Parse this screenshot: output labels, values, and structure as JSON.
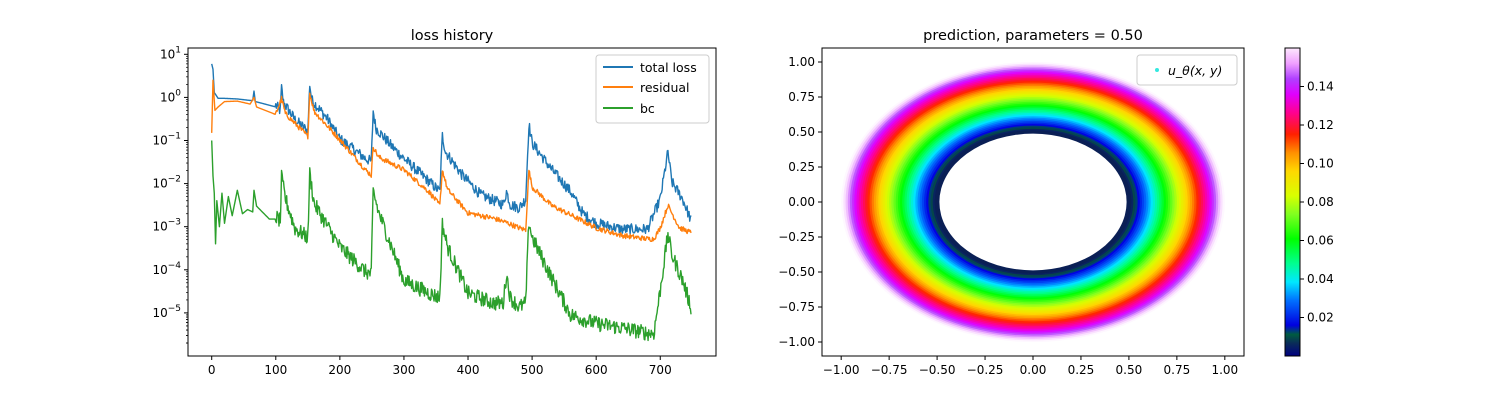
{
  "chart_data": [
    {
      "type": "line",
      "title": "loss history",
      "xlabel": "",
      "ylabel": "",
      "yscale": "log",
      "xlim": [
        -37,
        787
      ],
      "ylim": [
        1e-06,
        14
      ],
      "xticks": [
        0,
        100,
        200,
        300,
        400,
        500,
        600,
        700
      ],
      "ytick_labels": [
        "10^1",
        "10^0",
        "10^-1",
        "10^-2",
        "10^-3",
        "10^-4",
        "10^-5"
      ],
      "legend": "top-right",
      "series": [
        {
          "name": "total loss",
          "color": "#1f77b4",
          "points": [
            [
              0,
              6.0
            ],
            [
              2,
              4.5
            ],
            [
              4,
              1.3
            ],
            [
              10,
              0.95
            ],
            [
              20,
              0.95
            ],
            [
              40,
              0.92
            ],
            [
              60,
              0.85
            ],
            [
              64,
              0.85
            ],
            [
              66,
              1.4
            ],
            [
              68,
              0.8
            ],
            [
              80,
              0.72
            ],
            [
              100,
              0.6
            ],
            [
              107,
              0.45
            ],
            [
              109,
              1.5
            ],
            [
              112,
              0.7
            ],
            [
              130,
              0.28
            ],
            [
              150,
              0.15
            ],
            [
              153,
              1.9
            ],
            [
              156,
              0.8
            ],
            [
              180,
              0.3
            ],
            [
              200,
              0.1
            ],
            [
              240,
              0.035
            ],
            [
              249,
              0.03
            ],
            [
              252,
              0.45
            ],
            [
              256,
              0.18
            ],
            [
              280,
              0.07
            ],
            [
              300,
              0.035
            ],
            [
              340,
              0.01
            ],
            [
              356,
              0.006
            ],
            [
              360,
              0.12
            ],
            [
              365,
              0.05
            ],
            [
              390,
              0.015
            ],
            [
              420,
              0.005
            ],
            [
              455,
              0.003
            ],
            [
              460,
              0.006
            ],
            [
              466,
              0.003
            ],
            [
              480,
              0.0025
            ],
            [
              490,
              0.004
            ],
            [
              495,
              0.22
            ],
            [
              500,
              0.08
            ],
            [
              530,
              0.02
            ],
            [
              560,
              0.006
            ],
            [
              580,
              0.0018
            ],
            [
              600,
              0.0011
            ],
            [
              640,
              0.0008
            ],
            [
              680,
              0.0008
            ],
            [
              700,
              0.004
            ],
            [
              712,
              0.05
            ],
            [
              718,
              0.01
            ],
            [
              735,
              0.004
            ],
            [
              748,
              0.0013
            ]
          ],
          "noise": {
            "from": 100,
            "to": 748,
            "amplitude_decades": 0.25
          }
        },
        {
          "name": "residual",
          "color": "#ff7f0e",
          "points": [
            [
              0,
              0.15
            ],
            [
              2,
              2.5
            ],
            [
              5,
              0.5
            ],
            [
              10,
              0.6
            ],
            [
              20,
              0.8
            ],
            [
              40,
              0.82
            ],
            [
              60,
              0.7
            ],
            [
              66,
              1.0
            ],
            [
              70,
              0.6
            ],
            [
              100,
              0.4
            ],
            [
              109,
              0.9
            ],
            [
              115,
              0.4
            ],
            [
              150,
              0.12
            ],
            [
              153,
              1.2
            ],
            [
              160,
              0.45
            ],
            [
              200,
              0.1
            ],
            [
              240,
              0.02
            ],
            [
              249,
              0.015
            ],
            [
              252,
              0.07
            ],
            [
              260,
              0.04
            ],
            [
              300,
              0.02
            ],
            [
              340,
              0.006
            ],
            [
              356,
              0.003
            ],
            [
              360,
              0.02
            ],
            [
              368,
              0.007
            ],
            [
              400,
              0.002
            ],
            [
              440,
              0.0015
            ],
            [
              460,
              0.0012
            ],
            [
              480,
              0.0009
            ],
            [
              490,
              0.0008
            ],
            [
              495,
              0.02
            ],
            [
              500,
              0.008
            ],
            [
              530,
              0.003
            ],
            [
              560,
              0.0018
            ],
            [
              600,
              0.0009
            ],
            [
              640,
              0.0006
            ],
            [
              680,
              0.0005
            ],
            [
              690,
              0.0005
            ],
            [
              700,
              0.0009
            ],
            [
              712,
              0.003
            ],
            [
              730,
              0.0009
            ],
            [
              748,
              0.0007
            ]
          ],
          "noise": {
            "from": 100,
            "to": 748,
            "amplitude_decades": 0.12
          }
        },
        {
          "name": "bc",
          "color": "#2ca02c",
          "points": [
            [
              0,
              0.1
            ],
            [
              2,
              0.015
            ],
            [
              4,
              0.006
            ],
            [
              6,
              0.0004
            ],
            [
              8,
              0.004
            ],
            [
              12,
              0.001
            ],
            [
              16,
              0.006
            ],
            [
              20,
              0.0012
            ],
            [
              26,
              0.005
            ],
            [
              32,
              0.0018
            ],
            [
              40,
              0.007
            ],
            [
              48,
              0.002
            ],
            [
              56,
              0.0025
            ],
            [
              64,
              0.0022
            ],
            [
              66,
              0.007
            ],
            [
              70,
              0.003
            ],
            [
              90,
              0.0015
            ],
            [
              100,
              0.0015
            ],
            [
              107,
              0.0012
            ],
            [
              109,
              0.012
            ],
            [
              115,
              0.004
            ],
            [
              130,
              0.0008
            ],
            [
              150,
              0.0005
            ],
            [
              153,
              0.015
            ],
            [
              160,
              0.003
            ],
            [
              200,
              0.0003
            ],
            [
              240,
              8e-05
            ],
            [
              249,
              7e-05
            ],
            [
              252,
              0.006
            ],
            [
              260,
              0.002
            ],
            [
              300,
              5e-05
            ],
            [
              340,
              2.5e-05
            ],
            [
              356,
              2e-05
            ],
            [
              360,
              0.001
            ],
            [
              368,
              0.0003
            ],
            [
              400,
              2.5e-05
            ],
            [
              440,
              1.5e-05
            ],
            [
              455,
              1.5e-05
            ],
            [
              460,
              7e-05
            ],
            [
              466,
              2e-05
            ],
            [
              480,
              1.2e-05
            ],
            [
              490,
              1.5e-05
            ],
            [
              495,
              0.0012
            ],
            [
              500,
              0.0005
            ],
            [
              530,
              6e-05
            ],
            [
              560,
              8e-06
            ],
            [
              600,
              5e-06
            ],
            [
              640,
              4e-06
            ],
            [
              680,
              3e-06
            ],
            [
              690,
              3e-06
            ],
            [
              700,
              3e-05
            ],
            [
              712,
              0.0006
            ],
            [
              718,
              0.0002
            ],
            [
              735,
              5e-05
            ],
            [
              748,
              1.2e-05
            ]
          ],
          "noise": {
            "from": 100,
            "to": 748,
            "amplitude_decades": 0.35
          }
        }
      ]
    },
    {
      "type": "scatter",
      "title": "prediction, parameters = 0.50",
      "xlabel": "",
      "ylabel": "",
      "xlim": [
        -1.1,
        1.1
      ],
      "ylim": [
        -1.1,
        1.1
      ],
      "xticks": [
        -1.0,
        -0.75,
        -0.5,
        -0.25,
        0.0,
        0.25,
        0.5,
        0.75,
        1.0
      ],
      "xtick_labels": [
        "−1.00",
        "−0.75",
        "−0.50",
        "−0.25",
        "0.00",
        "0.25",
        "0.50",
        "0.75",
        "1.00"
      ],
      "yticks": [
        1.0,
        0.75,
        0.5,
        0.25,
        0.0,
        -0.25,
        -0.5,
        -0.75,
        -1.0
      ],
      "ytick_labels": [
        "1.00",
        "0.75",
        "0.50",
        "0.25",
        "0.00",
        "−0.25",
        "−0.50",
        "−0.75",
        "−1.00"
      ],
      "legend": "top-right",
      "legend_label": "u_θ(x, y)",
      "legend_marker_color": "#34e8e0",
      "colormap": "gist_ncar",
      "ring": {
        "inner_radius": 0.5,
        "outer_radius": 1.0,
        "value_min": 0.0,
        "value_max": 0.16
      },
      "colorbar": {
        "ticks": [
          0.02,
          0.04,
          0.06,
          0.08,
          0.1,
          0.12,
          0.14
        ],
        "tick_labels": [
          "0.02",
          "0.04",
          "0.06",
          "0.08",
          "0.10",
          "0.12",
          "0.14"
        ],
        "range": [
          0.0,
          0.16
        ]
      }
    }
  ]
}
